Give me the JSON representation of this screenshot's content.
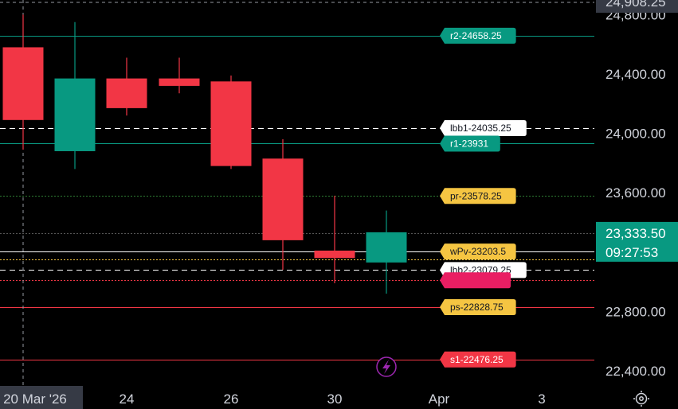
{
  "chart_data": {
    "type": "candlestick",
    "y_axis": {
      "ticks": [
        22400,
        22800,
        23200,
        23600,
        24000,
        24400,
        24800
      ],
      "tick_labels": [
        "22,400.00",
        "22,800.00",
        "23,200.00",
        "23,600.00",
        "24,000.00",
        "24,400.00",
        "24,800.00"
      ],
      "range": [
        22380,
        24920
      ],
      "top_label": "24,908.25"
    },
    "x_axis": {
      "labels": [
        "20 Mar '26",
        "24",
        "26",
        "30",
        "Apr",
        "3"
      ],
      "highlighted_label": "20 Mar '26"
    },
    "candles": [
      {
        "date": "2026-03-20",
        "open": 24580,
        "high": 24800,
        "low": 23890,
        "close": 24090
      },
      {
        "date": "2026-03-23",
        "open": 23880,
        "high": 24750,
        "low": 23760,
        "close": 24370
      },
      {
        "date": "2026-03-24",
        "open": 24370,
        "high": 24510,
        "low": 24120,
        "close": 24170
      },
      {
        "date": "2026-03-25",
        "open": 24370,
        "high": 24510,
        "low": 24270,
        "close": 24320
      },
      {
        "date": "2026-03-26",
        "open": 24350,
        "high": 24390,
        "low": 23760,
        "close": 23780
      },
      {
        "date": "2026-03-27",
        "open": 23830,
        "high": 23960,
        "low": 23080,
        "close": 23280
      },
      {
        "date": "2026-03-30",
        "open": 23210,
        "high": 23580,
        "low": 22990,
        "close": 23160
      },
      {
        "date": "2026-03-31",
        "open": 23130,
        "high": 23480,
        "low": 22920,
        "close": 23333.5
      }
    ],
    "levels": [
      {
        "label": "r2-24658.25",
        "value": 24658.25,
        "color": "#089981",
        "label_bg": "#089981",
        "label_fg": "#ffffff",
        "style": "solid"
      },
      {
        "label": "lbb1-24035.25",
        "value": 24035.25,
        "color": "#ffffff",
        "label_bg": "#ffffff",
        "label_fg": "#131722",
        "style": "dashed"
      },
      {
        "label": "r1-23931",
        "value": 23931,
        "color": "#089981",
        "label_bg": "#089981",
        "label_fg": "#ffffff",
        "style": "solid"
      },
      {
        "label": "pr-23578.25",
        "value": 23578.25,
        "color": "#2e7d32",
        "label_bg": "#f5c542",
        "label_fg": "#131722",
        "style": "dotted"
      },
      {
        "label": "",
        "value": 23330,
        "color": "#555555",
        "label_bg": "",
        "label_fg": "",
        "style": "dotted"
      },
      {
        "label": "wPv-23203.5",
        "value": 23203.5,
        "color": "#ffffff",
        "label_bg": "#f5c542",
        "label_fg": "#131722",
        "style": "solid"
      },
      {
        "label": "",
        "value": 23150,
        "color": "#f5c542",
        "label_bg": "",
        "label_fg": "",
        "style": "dotted"
      },
      {
        "label": "lbb2-23079.25",
        "value": 23079.25,
        "color": "#ffffff",
        "label_bg": "#ffffff",
        "label_fg": "#131722",
        "style": "dashed"
      },
      {
        "label": "",
        "value": 23010,
        "color": "#f23645",
        "label_bg": "#e91e63",
        "label_fg": "#ffffff",
        "style": "dotted"
      },
      {
        "label": "ps-22828.75",
        "value": 22828.75,
        "color": "#f23645",
        "label_bg": "#f5c542",
        "label_fg": "#131722",
        "style": "solid"
      },
      {
        "label": "s1-22476.25",
        "value": 22476.25,
        "color": "#f23645",
        "label_bg": "#f23645",
        "label_fg": "#ffffff",
        "style": "solid"
      }
    ],
    "current_price": {
      "value": 23333.5,
      "label": "23,333.50",
      "countdown": "09:27:53",
      "color": "#089981"
    },
    "colors": {
      "up": "#089981",
      "down": "#f23645",
      "background": "#000000",
      "axis_text": "#d1d4dc"
    },
    "icons": {
      "bottom_right": "gear-icon",
      "lightning": "lightning-icon"
    }
  }
}
